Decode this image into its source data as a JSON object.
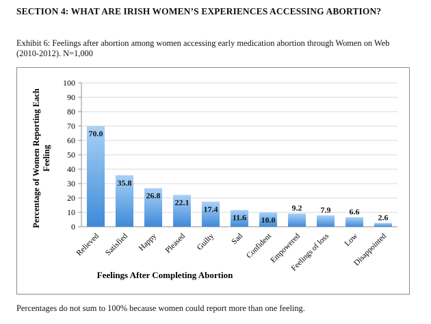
{
  "section_heading": "SECTION 4: WHAT ARE IRISH WOMEN’S EXPERIENCES ACCESSING ABORTION?",
  "exhibit_caption": "Exhibit 6: Feelings after abortion among women accessing early medication abortion through Women on Web (2010-2012). N=1,000",
  "footnote": "Percentages do not sum to 100% because women could report more than one feeling.",
  "chart_data": {
    "type": "bar",
    "title": "",
    "xlabel": "Feelings After Completing Abortion",
    "ylabel": "Percentage of Women Reporting Each Feeling",
    "ylim": [
      0,
      100
    ],
    "ytick_step": 10,
    "grid": true,
    "categories": [
      "Relieved",
      "Satisfied",
      "Happy",
      "Pleased",
      "Guilty",
      "Sad",
      "Confident",
      "Empowered",
      "Feelings of loss",
      "Low",
      "Disappointed"
    ],
    "values": [
      70.0,
      35.8,
      26.8,
      22.1,
      17.4,
      11.6,
      10.0,
      9.2,
      7.9,
      6.6,
      2.6
    ],
    "data_labels": [
      "70.0",
      "35.8",
      "26.8",
      "22.1",
      "17.4",
      "11.6",
      "10.0",
      "9.2",
      "7.9",
      "6.6",
      "2.6"
    ],
    "colors": {
      "bar_top": "#a9d1f7",
      "bar_bottom": "#3e8ad9",
      "grid": "#d9d9d9",
      "axis": "#8c8c8c"
    }
  }
}
